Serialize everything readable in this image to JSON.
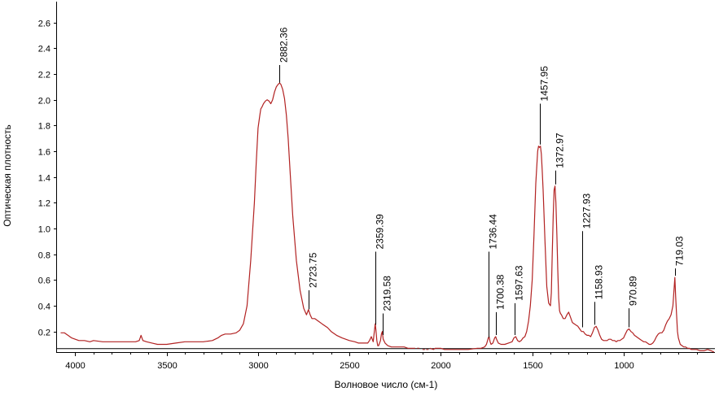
{
  "chart_data": {
    "type": "line",
    "xlabel": "Волновое число (см-1)",
    "ylabel": "Оптическая плотность",
    "xlim": [
      4100,
      500
    ],
    "ylim": [
      0.04,
      2.75
    ],
    "x_reversed": true,
    "grid": false,
    "baseline": 0.07,
    "colors": {
      "series": "#b22222",
      "axis": "#000000",
      "baseline": "#000000"
    },
    "xticks": [
      {
        "value": 4000,
        "label": "4000"
      },
      {
        "value": 3500,
        "label": "3500"
      },
      {
        "value": 3000,
        "label": "3000"
      },
      {
        "value": 2500,
        "label": "2500"
      },
      {
        "value": 2000,
        "label": "2000"
      },
      {
        "value": 1500,
        "label": "1500"
      },
      {
        "value": 1000,
        "label": "1000"
      }
    ],
    "yticks": [
      {
        "value": 0.2,
        "label": "0.2"
      },
      {
        "value": 0.4,
        "label": "0.4"
      },
      {
        "value": 0.6,
        "label": "0.6"
      },
      {
        "value": 0.8,
        "label": "0.8"
      },
      {
        "value": 1.0,
        "label": "1.0"
      },
      {
        "value": 1.2,
        "label": "1.2"
      },
      {
        "value": 1.4,
        "label": "1.4"
      },
      {
        "value": 1.6,
        "label": "1.6"
      },
      {
        "value": 1.8,
        "label": "1.8"
      },
      {
        "value": 2.0,
        "label": "2.0"
      },
      {
        "value": 2.2,
        "label": "2.2"
      },
      {
        "value": 2.4,
        "label": "2.4"
      },
      {
        "value": 2.6,
        "label": "2.6"
      }
    ],
    "peaks": [
      {
        "x": 2882.36,
        "y": 2.12,
        "label": "2882.36",
        "label_y": 2.27
      },
      {
        "x": 2723.75,
        "y": 0.36,
        "label": "2723.75",
        "label_y": 0.52
      },
      {
        "x": 2359.39,
        "y": 0.24,
        "label": "2359.39",
        "label_y": 0.82
      },
      {
        "x": 2319.58,
        "y": 0.16,
        "label": "2319.58",
        "label_y": 0.34
      },
      {
        "x": 1736.44,
        "y": 0.14,
        "label": "1736.44",
        "label_y": 0.82
      },
      {
        "x": 1700.38,
        "y": 0.16,
        "label": "1700.38",
        "label_y": 0.35
      },
      {
        "x": 1597.63,
        "y": 0.16,
        "label": "1597.63",
        "label_y": 0.42
      },
      {
        "x": 1457.95,
        "y": 1.64,
        "label": "1457.95",
        "label_y": 1.97
      },
      {
        "x": 1372.97,
        "y": 1.33,
        "label": "1372.97",
        "label_y": 1.45
      },
      {
        "x": 1227.93,
        "y": 0.22,
        "label": "1227.93",
        "label_y": 0.98
      },
      {
        "x": 1158.93,
        "y": 0.24,
        "label": "1158.93",
        "label_y": 0.43
      },
      {
        "x": 970.89,
        "y": 0.22,
        "label": "970.89",
        "label_y": 0.38
      },
      {
        "x": 719.03,
        "y": 0.62,
        "label": "719.03",
        "label_y": 0.69
      }
    ],
    "series": [
      {
        "x": [
          4080,
          4060,
          4040,
          4020,
          4000,
          3980,
          3950,
          3920,
          3900,
          3850,
          3800,
          3750,
          3700,
          3670,
          3650,
          3640,
          3630,
          3610,
          3580,
          3550,
          3500,
          3450,
          3400,
          3350,
          3300,
          3250,
          3220,
          3200,
          3180,
          3150,
          3120,
          3100,
          3080,
          3060,
          3040,
          3020,
          3010,
          3000,
          2990,
          2985,
          2980,
          2970,
          2960,
          2950,
          2940,
          2930,
          2920,
          2910,
          2900,
          2890,
          2882,
          2875,
          2865,
          2855,
          2845,
          2835,
          2825,
          2810,
          2790,
          2770,
          2750,
          2735,
          2724,
          2715,
          2705,
          2690,
          2670,
          2650,
          2620,
          2600,
          2570,
          2540,
          2500,
          2470,
          2450,
          2430,
          2400,
          2390,
          2380,
          2370,
          2362,
          2359,
          2355,
          2350,
          2345,
          2340,
          2330,
          2325,
          2320,
          2315,
          2305,
          2290,
          2270,
          2250,
          2230,
          2200,
          2180,
          2140
        ],
        "y": [
          0.19,
          0.19,
          0.17,
          0.15,
          0.14,
          0.13,
          0.13,
          0.12,
          0.13,
          0.12,
          0.12,
          0.12,
          0.12,
          0.12,
          0.13,
          0.17,
          0.13,
          0.12,
          0.11,
          0.1,
          0.1,
          0.11,
          0.12,
          0.12,
          0.12,
          0.13,
          0.15,
          0.17,
          0.18,
          0.18,
          0.19,
          0.21,
          0.26,
          0.4,
          0.75,
          1.2,
          1.5,
          1.78,
          1.88,
          1.93,
          1.94,
          1.97,
          1.99,
          2.0,
          1.99,
          1.97,
          2.0,
          2.06,
          2.1,
          2.12,
          2.13,
          2.12,
          2.08,
          2.01,
          1.88,
          1.7,
          1.45,
          1.1,
          0.75,
          0.52,
          0.38,
          0.33,
          0.37,
          0.33,
          0.3,
          0.3,
          0.28,
          0.26,
          0.23,
          0.2,
          0.17,
          0.15,
          0.13,
          0.12,
          0.11,
          0.11,
          0.11,
          0.13,
          0.16,
          0.12,
          0.22,
          0.26,
          0.21,
          0.13,
          0.09,
          0.09,
          0.13,
          0.18,
          0.2,
          0.14,
          0.11,
          0.09,
          0.08,
          0.08,
          0.08,
          0.08,
          0.07,
          0.07
        ]
      },
      {
        "x": [
          2060,
          2040,
          2030,
          2010,
          2000,
          1980,
          1950,
          1900,
          1850,
          1800,
          1780,
          1760,
          1750,
          1740,
          1736,
          1730,
          1725,
          1715,
          1705,
          1700,
          1695,
          1685,
          1670,
          1650,
          1630,
          1610,
          1600,
          1590,
          1580,
          1570,
          1560,
          1550,
          1540,
          1530,
          1520,
          1510,
          1500,
          1490,
          1480,
          1470,
          1465,
          1460,
          1455,
          1450,
          1445,
          1440,
          1430,
          1420,
          1410,
          1400,
          1395,
          1390,
          1385,
          1380,
          1375,
          1370,
          1365,
          1360,
          1355,
          1350,
          1345,
          1340,
          1330,
          1320,
          1310,
          1300,
          1290,
          1280,
          1270,
          1260,
          1250,
          1240,
          1230,
          1220,
          1210,
          1200,
          1190,
          1180,
          1170,
          1160,
          1150,
          1140,
          1130,
          1120,
          1110,
          1100,
          1090,
          1080,
          1070,
          1060,
          1050,
          1040,
          1030,
          1020,
          1010,
          1000,
          990,
          980,
          970,
          960,
          950,
          940,
          930,
          920,
          910,
          900,
          890,
          880,
          870,
          860,
          850,
          840,
          830,
          820,
          810,
          800,
          790,
          780,
          770,
          760,
          750,
          740,
          730,
          725,
          719,
          715,
          710,
          705,
          700,
          690,
          680,
          670,
          660,
          650,
          640,
          630,
          620,
          600,
          580,
          560,
          540,
          520,
          505
        ],
        "y": [
          0.07,
          0.06,
          0.07,
          0.07,
          0.07,
          0.06,
          0.06,
          0.06,
          0.06,
          0.07,
          0.07,
          0.08,
          0.1,
          0.15,
          0.16,
          0.12,
          0.1,
          0.11,
          0.15,
          0.16,
          0.14,
          0.11,
          0.1,
          0.1,
          0.11,
          0.12,
          0.15,
          0.16,
          0.13,
          0.12,
          0.13,
          0.15,
          0.16,
          0.2,
          0.28,
          0.4,
          0.6,
          0.95,
          1.35,
          1.6,
          1.64,
          1.63,
          1.64,
          1.58,
          1.45,
          1.3,
          0.9,
          0.55,
          0.42,
          0.4,
          0.5,
          0.8,
          1.1,
          1.3,
          1.33,
          1.2,
          0.95,
          0.68,
          0.46,
          0.36,
          0.34,
          0.33,
          0.3,
          0.3,
          0.33,
          0.35,
          0.31,
          0.27,
          0.26,
          0.25,
          0.24,
          0.22,
          0.2,
          0.2,
          0.18,
          0.17,
          0.17,
          0.16,
          0.19,
          0.23,
          0.24,
          0.21,
          0.17,
          0.14,
          0.13,
          0.13,
          0.13,
          0.14,
          0.14,
          0.13,
          0.13,
          0.12,
          0.13,
          0.13,
          0.14,
          0.15,
          0.18,
          0.21,
          0.22,
          0.2,
          0.19,
          0.17,
          0.16,
          0.15,
          0.14,
          0.13,
          0.12,
          0.12,
          0.11,
          0.1,
          0.1,
          0.11,
          0.13,
          0.16,
          0.18,
          0.19,
          0.19,
          0.21,
          0.25,
          0.28,
          0.3,
          0.33,
          0.4,
          0.5,
          0.62,
          0.48,
          0.33,
          0.2,
          0.15,
          0.1,
          0.09,
          0.08,
          0.08,
          0.07,
          0.07,
          0.06,
          0.06,
          0.06,
          0.05,
          0.05,
          0.06,
          0.05,
          0.04
        ]
      }
    ]
  }
}
